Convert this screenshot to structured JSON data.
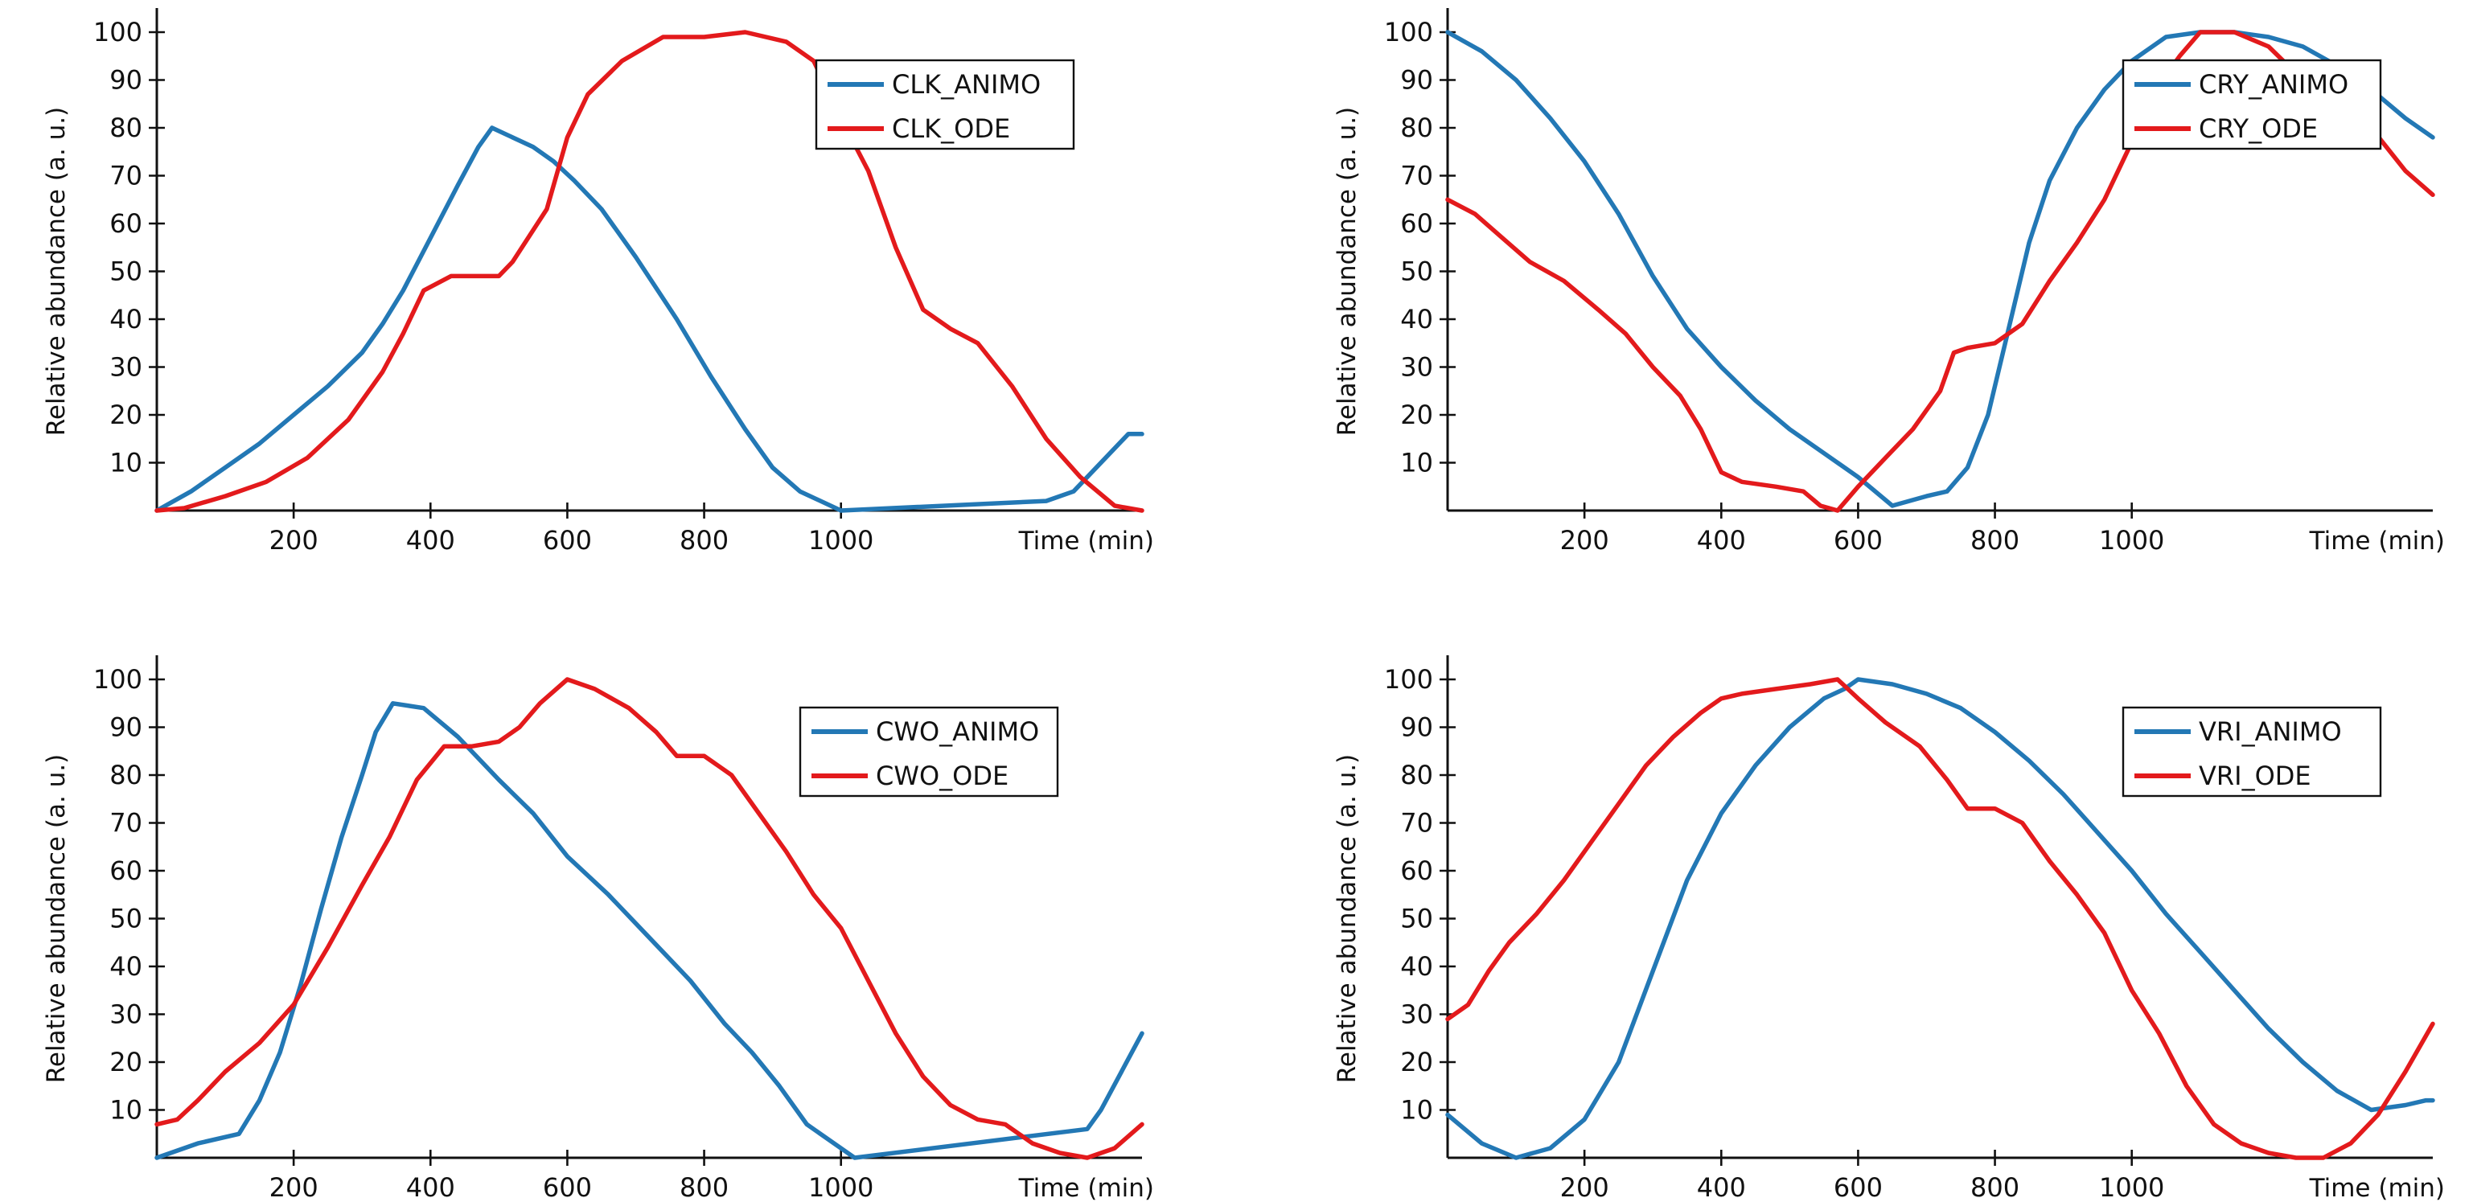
{
  "colors": {
    "animo": "#2378b5",
    "ode": "#e31a1c"
  },
  "chart_data": [
    {
      "type": "line",
      "xlabel": "Time (min)",
      "ylabel": "Relative abundance (a. u.)",
      "xlim": [
        0,
        1440
      ],
      "ylim": [
        0,
        100
      ],
      "xticks": [
        200,
        400,
        600,
        800,
        1000
      ],
      "yticks": [
        10,
        20,
        30,
        40,
        50,
        60,
        70,
        80,
        90,
        100
      ],
      "legend_position": "top-right",
      "grid": false,
      "series": [
        {
          "name": "CLK_ANIMO",
          "color": "#2378b5",
          "x": [
            0,
            50,
            100,
            150,
            200,
            250,
            300,
            330,
            360,
            400,
            440,
            470,
            490,
            550,
            580,
            610,
            650,
            700,
            760,
            810,
            860,
            900,
            940,
            1000,
            1300,
            1340,
            1420,
            1440
          ],
          "y": [
            0,
            4,
            9,
            14,
            20,
            26,
            33,
            39,
            46,
            57,
            68,
            76,
            80,
            76,
            73,
            69,
            63,
            53,
            40,
            28,
            17,
            9,
            4,
            0,
            2,
            4,
            16,
            16
          ]
        },
        {
          "name": "CLK_ODE",
          "color": "#e31a1c",
          "x": [
            0,
            40,
            100,
            160,
            220,
            280,
            330,
            360,
            390,
            430,
            500,
            520,
            570,
            600,
            630,
            680,
            740,
            800,
            860,
            920,
            960,
            1000,
            1040,
            1080,
            1120,
            1160,
            1200,
            1250,
            1300,
            1350,
            1400,
            1440
          ],
          "y": [
            0,
            0.5,
            3,
            6,
            11,
            19,
            29,
            37,
            46,
            49,
            49,
            52,
            63,
            78,
            87,
            94,
            99,
            99,
            100,
            98,
            94,
            82,
            71,
            55,
            42,
            38,
            35,
            26,
            15,
            7,
            1,
            0
          ]
        }
      ]
    },
    {
      "type": "line",
      "xlabel": "Time (min)",
      "ylabel": "Relative abundance (a. u.)",
      "xlim": [
        0,
        1440
      ],
      "ylim": [
        0,
        100
      ],
      "xticks": [
        200,
        400,
        600,
        800,
        1000
      ],
      "yticks": [
        10,
        20,
        30,
        40,
        50,
        60,
        70,
        80,
        90,
        100
      ],
      "legend_position": "top-right",
      "grid": false,
      "series": [
        {
          "name": "CRY_ANIMO",
          "color": "#2378b5",
          "x": [
            0,
            50,
            100,
            150,
            200,
            250,
            300,
            350,
            400,
            450,
            500,
            550,
            600,
            650,
            700,
            730,
            760,
            790,
            820,
            850,
            880,
            920,
            960,
            1000,
            1050,
            1100,
            1150,
            1200,
            1250,
            1300,
            1350,
            1400,
            1440
          ],
          "y": [
            100,
            96,
            90,
            82,
            73,
            62,
            49,
            38,
            30,
            23,
            17,
            12,
            7,
            1,
            3,
            4,
            9,
            20,
            38,
            56,
            69,
            80,
            88,
            94,
            99,
            100,
            100,
            99,
            97,
            93,
            88,
            82,
            78
          ]
        },
        {
          "name": "CRY_ODE",
          "color": "#e31a1c",
          "x": [
            0,
            40,
            80,
            120,
            170,
            220,
            260,
            300,
            340,
            370,
            400,
            430,
            480,
            520,
            545,
            570,
            600,
            640,
            680,
            720,
            740,
            760,
            800,
            840,
            880,
            920,
            960,
            1000,
            1040,
            1070,
            1100,
            1150,
            1200,
            1250,
            1300,
            1350,
            1400,
            1440
          ],
          "y": [
            65,
            62,
            57,
            52,
            48,
            42,
            37,
            30,
            24,
            17,
            8,
            6,
            5,
            4,
            1,
            0,
            5,
            11,
            17,
            25,
            33,
            34,
            35,
            39,
            48,
            56,
            65,
            77,
            89,
            95,
            100,
            100,
            97,
            90,
            85,
            80,
            71,
            66
          ]
        }
      ]
    },
    {
      "type": "line",
      "xlabel": "Time (min)",
      "ylabel": "Relative abundance (a. u.)",
      "xlim": [
        0,
        1440
      ],
      "ylim": [
        0,
        100
      ],
      "xticks": [
        200,
        400,
        600,
        800,
        1000
      ],
      "yticks": [
        10,
        20,
        30,
        40,
        50,
        60,
        70,
        80,
        90,
        100
      ],
      "legend_position": "top-right",
      "grid": false,
      "series": [
        {
          "name": "CWO_ANIMO",
          "color": "#2378b5",
          "x": [
            0,
            60,
            120,
            150,
            180,
            210,
            240,
            270,
            300,
            320,
            345,
            390,
            440,
            500,
            550,
            600,
            660,
            720,
            780,
            830,
            870,
            910,
            950,
            1020,
            1360,
            1380,
            1410,
            1440
          ],
          "y": [
            0,
            3,
            5,
            12,
            22,
            36,
            52,
            67,
            80,
            89,
            95,
            94,
            88,
            79,
            72,
            63,
            55,
            46,
            37,
            28,
            22,
            15,
            7,
            0,
            6,
            10,
            18,
            26
          ]
        },
        {
          "name": "CWO_ODE",
          "color": "#e31a1c",
          "x": [
            0,
            30,
            60,
            100,
            150,
            200,
            250,
            300,
            340,
            380,
            420,
            460,
            500,
            530,
            560,
            600,
            640,
            690,
            730,
            760,
            800,
            840,
            880,
            920,
            960,
            1000,
            1040,
            1080,
            1120,
            1160,
            1200,
            1240,
            1280,
            1320,
            1360,
            1400,
            1440
          ],
          "y": [
            7,
            8,
            12,
            18,
            24,
            32,
            44,
            57,
            67,
            79,
            86,
            86,
            87,
            90,
            95,
            100,
            98,
            94,
            89,
            84,
            84,
            80,
            72,
            64,
            55,
            48,
            37,
            26,
            17,
            11,
            8,
            7,
            3,
            1,
            0,
            2,
            7
          ]
        }
      ]
    },
    {
      "type": "line",
      "xlabel": "Time (min)",
      "ylabel": "Relative abundance (a. u.)",
      "xlim": [
        0,
        1440
      ],
      "ylim": [
        0,
        100
      ],
      "xticks": [
        200,
        400,
        600,
        800,
        1000
      ],
      "yticks": [
        10,
        20,
        30,
        40,
        50,
        60,
        70,
        80,
        90,
        100
      ],
      "legend_position": "top-right",
      "grid": false,
      "series": [
        {
          "name": "VRI_ANIMO",
          "color": "#2378b5",
          "x": [
            0,
            50,
            100,
            150,
            200,
            250,
            300,
            350,
            400,
            450,
            500,
            550,
            580,
            600,
            650,
            700,
            750,
            800,
            850,
            900,
            950,
            1000,
            1050,
            1100,
            1150,
            1200,
            1250,
            1300,
            1350,
            1400,
            1430,
            1440
          ],
          "y": [
            9,
            3,
            0,
            2,
            8,
            20,
            39,
            58,
            72,
            82,
            90,
            96,
            98,
            100,
            99,
            97,
            94,
            89,
            83,
            76,
            68,
            60,
            51,
            43,
            35,
            27,
            20,
            14,
            10,
            11,
            12,
            12
          ]
        },
        {
          "name": "VRI_ODE",
          "color": "#e31a1c",
          "x": [
            0,
            30,
            60,
            90,
            130,
            170,
            210,
            250,
            290,
            330,
            370,
            400,
            430,
            480,
            530,
            570,
            600,
            640,
            690,
            730,
            760,
            800,
            840,
            880,
            920,
            960,
            1000,
            1040,
            1080,
            1120,
            1160,
            1200,
            1240,
            1280,
            1320,
            1360,
            1400,
            1440
          ],
          "y": [
            29,
            32,
            39,
            45,
            51,
            58,
            66,
            74,
            82,
            88,
            93,
            96,
            97,
            98,
            99,
            100,
            96,
            91,
            86,
            79,
            73,
            73,
            70,
            62,
            55,
            47,
            35,
            26,
            15,
            7,
            3,
            1,
            0,
            0,
            3,
            9,
            18,
            28
          ]
        }
      ]
    }
  ]
}
